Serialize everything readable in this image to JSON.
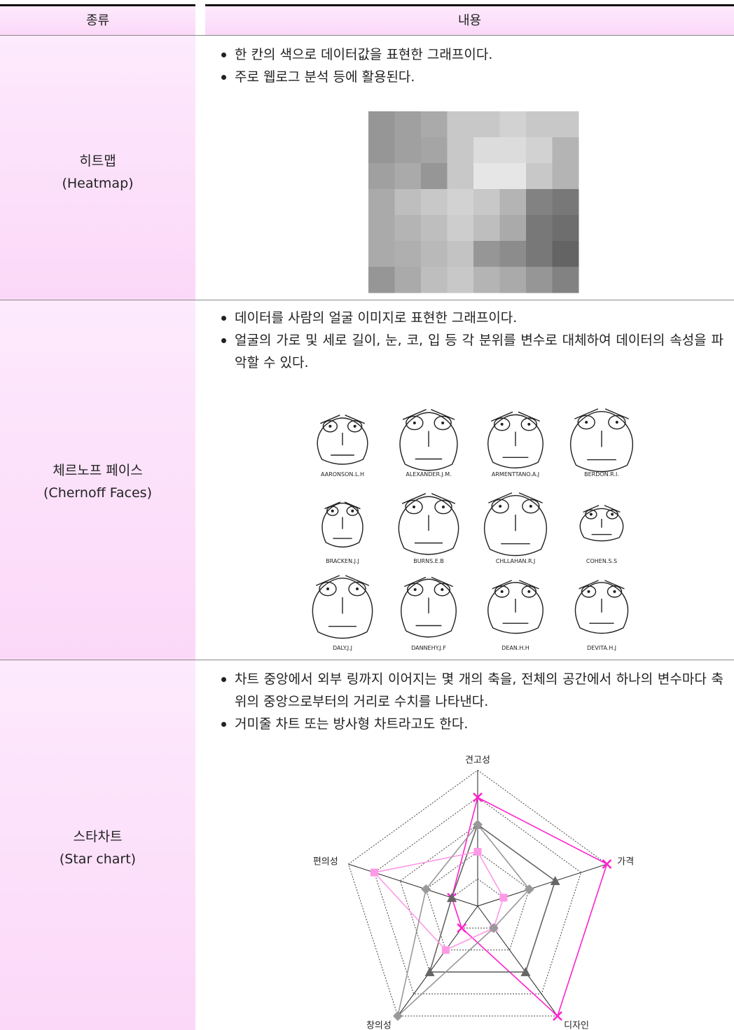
{
  "header": {
    "col1": "종류",
    "col2": "내용"
  },
  "rows": [
    {
      "name": "히트맵",
      "name_en": "(Heatmap)",
      "bullets": [
        "한 칸의 색으로 데이터값을 표현한 그래프이다.",
        "주로 웹로그 분석 등에 활용된다."
      ],
      "heatmap": {
        "cells": [
          [
            150,
            160,
            170,
            200,
            200,
            210,
            200,
            200
          ],
          [
            150,
            160,
            165,
            200,
            220,
            220,
            210,
            180
          ],
          [
            160,
            170,
            150,
            200,
            230,
            230,
            200,
            180
          ],
          [
            170,
            190,
            200,
            210,
            200,
            180,
            130,
            120
          ],
          [
            170,
            180,
            190,
            205,
            190,
            170,
            120,
            110
          ],
          [
            170,
            175,
            185,
            195,
            150,
            140,
            120,
            100
          ],
          [
            150,
            170,
            190,
            200,
            180,
            170,
            150,
            130
          ]
        ]
      }
    },
    {
      "name": "체르노프 페이스",
      "name_en": "(Chernoff Faces)",
      "bullets": [
        "데이터를 사람의 얼굴 이미지로 표현한 그래프이다.",
        "얼굴의 가로 및 세로 길이, 눈, 코, 입 등 각 분위를 변수로 대체하여 데이터의 속성을 파악할 수 있다."
      ],
      "faces": [
        "AARONSON.L.H",
        "ALEXANDER.J.M.",
        "ARMENTTANO.A.J",
        "BERDON.R.I.",
        "BRACKEN.J.J",
        "BURNS.E.B",
        "CHLLAHAN.R.J",
        "COHEN.S.S",
        "DALY.J.J",
        "DANNEHY.J.F",
        "DEAN.H.H",
        "DEVITA.H.J"
      ]
    },
    {
      "name": "스타차트",
      "name_en": "(Star chart)",
      "bullets": [
        "차트 중앙에서 외부 링까지 이어지는 몇 개의 축을, 전체의 공간에서 하나의 변수마다 축 위의 중앙으로부터의 거리로 수치를 나타낸다.",
        "거미줄 차트 또는 방사형 차트라고도 한다."
      ],
      "radar": {
        "axes": [
          "견고성",
          "가격",
          "디자인",
          "창의성",
          "편의성"
        ],
        "max": 5,
        "series": [
          {
            "color": "#ff22cc",
            "marker": "x",
            "values": [
              4,
              5,
              5,
              1,
              1
            ]
          },
          {
            "color": "#666666",
            "marker": "triangle",
            "values": [
              3,
              3,
              3,
              3,
              1
            ]
          },
          {
            "color": "#ff99e6",
            "marker": "square",
            "values": [
              2,
              1,
              1,
              2,
              4
            ]
          },
          {
            "color": "#999999",
            "marker": "diamond",
            "values": [
              3,
              2,
              1,
              5,
              2
            ]
          }
        ]
      }
    }
  ]
}
